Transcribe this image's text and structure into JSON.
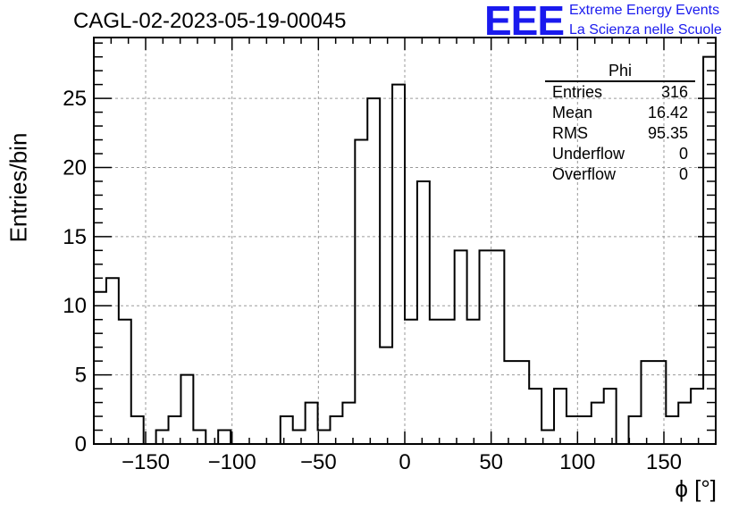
{
  "header": {
    "title": "CAGL-02-2023-05-19-00045",
    "logo_text": "EEE",
    "logo_line1": "Extreme Energy Events",
    "logo_line2": "La Scienza nelle Scuole"
  },
  "stats": {
    "name": "Phi",
    "rows": [
      {
        "label": "Entries",
        "value": "316"
      },
      {
        "label": "Mean",
        "value": "16.42"
      },
      {
        "label": "RMS",
        "value": "95.35"
      },
      {
        "label": "Underflow",
        "value": "0"
      },
      {
        "label": "Overflow",
        "value": "0"
      }
    ]
  },
  "colors": {
    "line": "#000000",
    "grid": "#9a9a9a",
    "logo": "#1a1aee"
  },
  "chart_data": {
    "type": "bar",
    "style": "step-histogram",
    "title": "CAGL-02-2023-05-19-00045",
    "xlabel": "ϕ [°]",
    "ylabel": "Entries/bin",
    "xlim": [
      -180,
      180
    ],
    "ylim": [
      0,
      29.4
    ],
    "grid": true,
    "bin_edges": [
      -180,
      -172.8,
      -165.6,
      -158.4,
      -151.2,
      -144,
      -136.8,
      -129.6,
      -122.4,
      -115.2,
      -108,
      -100.8,
      -93.6,
      -86.4,
      -79.2,
      -72,
      -64.8,
      -57.6,
      -50.4,
      -43.2,
      -36,
      -28.8,
      -21.6,
      -14.4,
      -7.2,
      0,
      7.2,
      14.4,
      21.6,
      28.8,
      36,
      43.2,
      50.4,
      57.6,
      64.8,
      72,
      79.2,
      86.4,
      93.6,
      100.8,
      108,
      115.2,
      122.4,
      129.6,
      136.8,
      144,
      151.2,
      158.4,
      165.6,
      172.8,
      180
    ],
    "values": [
      11,
      12,
      9,
      2,
      0,
      1,
      2,
      5,
      1,
      0,
      1,
      0,
      0,
      0,
      0,
      2,
      1,
      3,
      1,
      2,
      3,
      22,
      25,
      7,
      26,
      9,
      19,
      9,
      9,
      14,
      9,
      14,
      14,
      6,
      6,
      4,
      1,
      4,
      2,
      2,
      3,
      4,
      0,
      2,
      6,
      6,
      2,
      3,
      4,
      28
    ],
    "x_ticks": [
      -150,
      -100,
      -50,
      0,
      50,
      100,
      150
    ],
    "x_tick_labels": [
      "−150",
      "−100",
      "−50",
      "0",
      "50",
      "100",
      "150"
    ],
    "y_ticks": [
      0,
      5,
      10,
      15,
      20,
      25
    ],
    "y_tick_labels": [
      "0",
      "5",
      "10",
      "15",
      "20",
      "25"
    ]
  }
}
